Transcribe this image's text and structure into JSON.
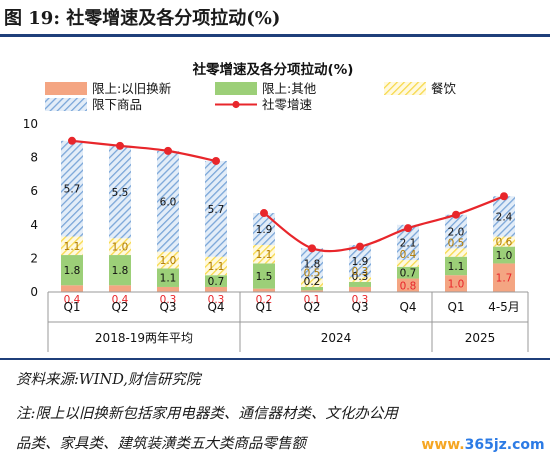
{
  "figure": {
    "title": "图 19:  社零增速及各分项拉动(%)",
    "source": "资料来源:WIND,财信研究院",
    "note_line1": "注:限上以旧换新包括家用电器类、通信器材类、文化办公用",
    "note_line2": "品类、家具类、建筑装潢类五大类商品零售额",
    "watermark_part1": "www.",
    "watermark_part2": "365jz.com"
  },
  "chart_data": {
    "type": "bar",
    "title": "社零增速及各分项拉动(%)",
    "categories": [
      "Q1",
      "Q2",
      "Q3",
      "Q4",
      "Q1",
      "Q2",
      "Q3",
      "Q4",
      "Q1",
      "4-5月"
    ],
    "groups": [
      {
        "label": "2018-19两年平均",
        "from": 0,
        "to": 3
      },
      {
        "label": "2024",
        "from": 4,
        "to": 7
      },
      {
        "label": "2025",
        "from": 8,
        "to": 9
      }
    ],
    "ylim": [
      0,
      10
    ],
    "yticks": [
      "0",
      "2",
      "4",
      "6",
      "8",
      "10"
    ],
    "legend_position": "top",
    "series": [
      {
        "name": "限上:以旧换新",
        "kind": "bar",
        "color": "#f4a582",
        "values": [
          0.4,
          0.4,
          0.3,
          0.3,
          0.2,
          0.1,
          0.3,
          0.8,
          1.0,
          1.7
        ],
        "labels": [
          "0.4",
          "0.4",
          "0.3",
          "0.3",
          "0.2",
          "0.1",
          "0.3",
          "0.8",
          "1.0",
          "1.7"
        ],
        "label_color": "#e8262b"
      },
      {
        "name": "限上:其他",
        "kind": "bar",
        "color": "#9ccf78",
        "values": [
          1.8,
          1.8,
          1.1,
          0.7,
          1.5,
          0.2,
          0.3,
          0.7,
          1.1,
          1.0
        ],
        "labels": [
          "1.8",
          "1.8",
          "1.1",
          "0.7",
          "1.5",
          "0.2",
          "0.3",
          "0.7",
          "1.1",
          "1.0"
        ],
        "label_color": "#111111"
      },
      {
        "name": "餐饮",
        "kind": "bar",
        "color": "#f7d94c",
        "values": [
          1.1,
          1.0,
          1.0,
          1.1,
          1.1,
          0.5,
          0.3,
          0.4,
          0.5,
          0.6
        ],
        "labels": [
          "1.1",
          "1.0",
          "1.0",
          "1.1",
          "1.1",
          "0.5",
          "0.3",
          "0.4",
          "0.5",
          "0.6"
        ],
        "label_color": "#b07a00"
      },
      {
        "name": "限下商品",
        "kind": "bar",
        "color": "#7aa6d8",
        "values": [
          5.7,
          5.5,
          6.0,
          5.7,
          1.9,
          1.8,
          1.9,
          2.1,
          2.0,
          2.4
        ],
        "labels": [
          "5.7",
          "5.5",
          "6.0",
          "5.7",
          "1.9",
          "1.8",
          "1.9",
          "2.1",
          "2.0",
          "2.4"
        ],
        "label_color": "#111111"
      },
      {
        "name": "社零增速",
        "kind": "line",
        "color": "#e8262b",
        "values": [
          9.0,
          8.7,
          8.4,
          7.8,
          4.7,
          2.6,
          2.7,
          3.8,
          4.6,
          5.7
        ]
      }
    ]
  }
}
